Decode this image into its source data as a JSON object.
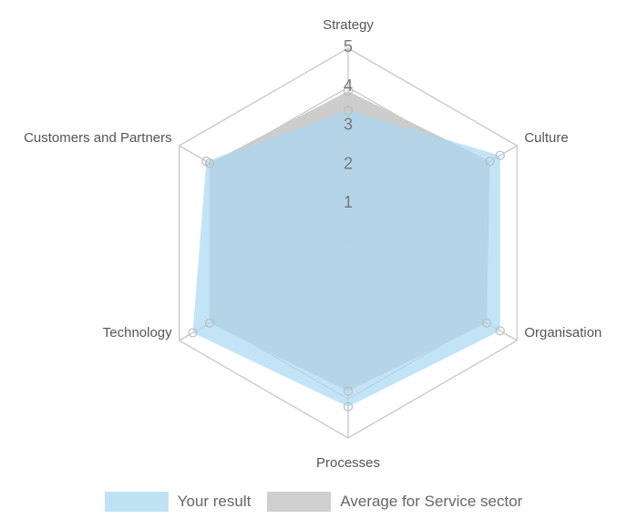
{
  "chart_data": {
    "type": "radar",
    "title": "",
    "axes": [
      "Strategy",
      "Culture",
      "Organisation",
      "Processes",
      "Technology",
      "Customers and Partners"
    ],
    "rlim": [
      0,
      5
    ],
    "ticks": [
      "1",
      "2",
      "3",
      "4",
      "5"
    ],
    "grid": true,
    "legend_position": "bottom",
    "series": [
      {
        "name": "Average for Service sector",
        "values": [
          3.9,
          4.2,
          4.1,
          3.8,
          4.1,
          4.1
        ],
        "color": "#c8c8c8"
      },
      {
        "name": "Your result",
        "values": [
          3.4,
          4.5,
          4.5,
          4.2,
          4.6,
          4.2
        ],
        "color": "#a9d9f3"
      }
    ]
  },
  "legend": {
    "your_result": "Your result",
    "average": "Average for Service sector"
  }
}
